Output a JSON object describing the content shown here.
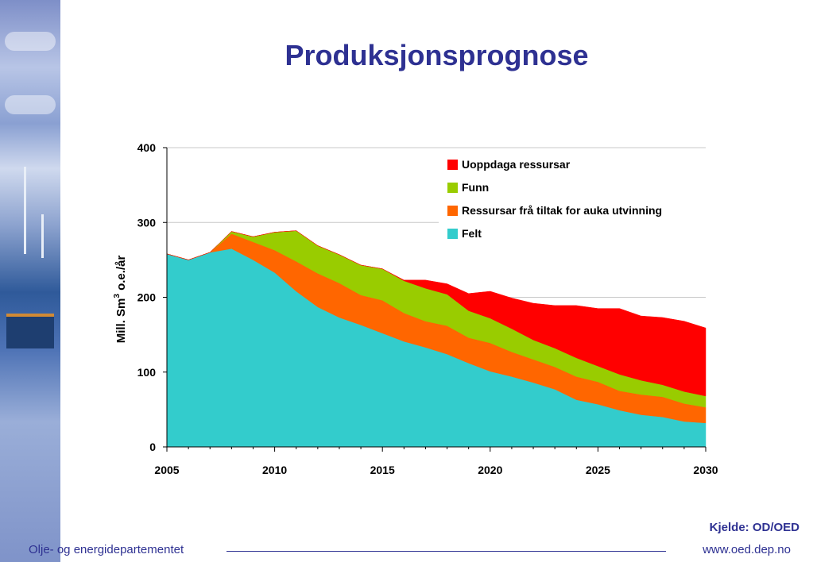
{
  "title": "Produksjonsprognose",
  "footer": {
    "source": "Kjelde: OD/OED",
    "organization": "Olje- og energidepartementet",
    "url": "www.oed.dep.no"
  },
  "chart_data": {
    "type": "area",
    "stacked": true,
    "ylabel_main": "Mill. Sm",
    "ylabel_sup": "3",
    "ylabel_rest": " o.e./år",
    "xlabel": "",
    "xlim": [
      2005,
      2030
    ],
    "ylim": [
      0,
      400
    ],
    "x_ticks": [
      2005,
      2010,
      2015,
      2020,
      2025,
      2030
    ],
    "y_ticks": [
      0,
      100,
      200,
      300,
      400
    ],
    "grid": "horizontal",
    "legend_position": "top-right",
    "x": [
      2005,
      2006,
      2007,
      2008,
      2009,
      2010,
      2011,
      2012,
      2013,
      2014,
      2015,
      2016,
      2017,
      2018,
      2019,
      2020,
      2021,
      2022,
      2023,
      2024,
      2025,
      2026,
      2027,
      2028,
      2029,
      2030
    ],
    "series": [
      {
        "name": "Felt",
        "color": "#33cccc",
        "values": [
          258,
          250,
          260,
          265,
          250,
          233,
          208,
          187,
          173,
          163,
          152,
          141,
          133,
          124,
          112,
          101,
          94,
          86,
          77,
          63,
          57,
          49,
          43,
          40,
          34,
          32
        ]
      },
      {
        "name": "Ressursar frå tiltak for auka utvinning",
        "color": "#ff6600",
        "values": [
          0,
          0,
          0,
          20,
          24,
          30,
          40,
          45,
          46,
          40,
          44,
          38,
          35,
          38,
          34,
          38,
          33,
          31,
          30,
          31,
          30,
          26,
          27,
          27,
          24,
          21
        ]
      },
      {
        "name": "Funn",
        "color": "#99cc00",
        "values": [
          0,
          0,
          0,
          3,
          7,
          24,
          41,
          37,
          38,
          40,
          42,
          43,
          44,
          42,
          36,
          33,
          31,
          26,
          25,
          25,
          21,
          22,
          19,
          16,
          16,
          15
        ]
      },
      {
        "name": "Uoppdaga ressursar",
        "color": "#ff0000",
        "values": [
          0,
          0,
          0,
          0,
          0,
          0,
          0,
          0,
          0,
          0,
          0,
          1,
          11,
          14,
          23,
          36,
          41,
          49,
          57,
          70,
          77,
          88,
          86,
          90,
          94,
          91
        ]
      }
    ]
  }
}
